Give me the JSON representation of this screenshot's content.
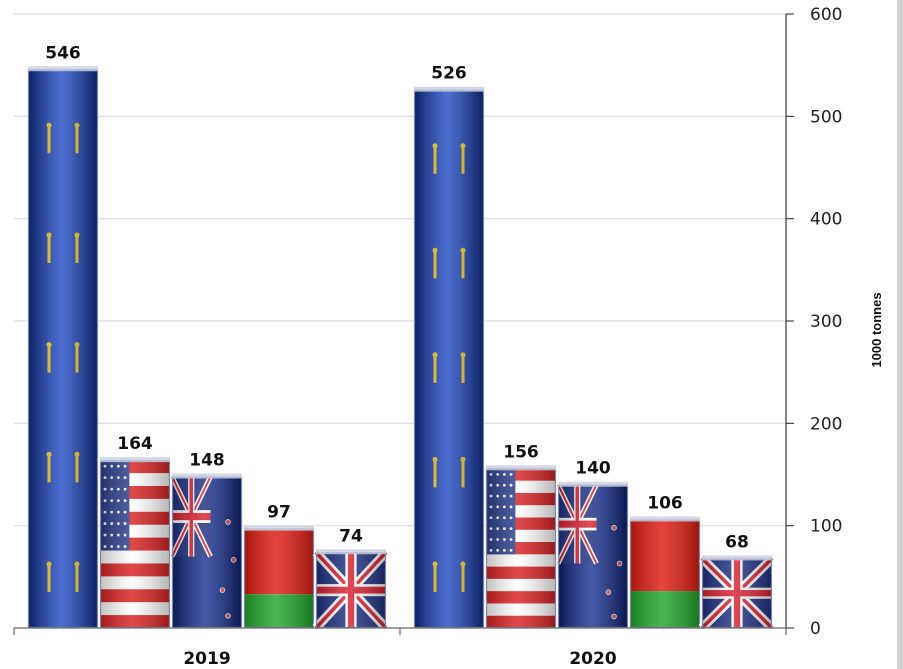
{
  "chart_data": {
    "type": "bar",
    "categories": [
      "2019",
      "2020"
    ],
    "series": [
      {
        "flag": "eu",
        "values": [
          546,
          526
        ]
      },
      {
        "flag": "us",
        "values": [
          164,
          156
        ]
      },
      {
        "flag": "nz",
        "values": [
          148,
          140
        ]
      },
      {
        "flag": "by",
        "values": [
          97,
          106
        ]
      },
      {
        "flag": "uk",
        "values": [
          74,
          68
        ]
      }
    ],
    "title": "",
    "xlabel": "",
    "ylabel": "1000 tonnes",
    "ylim": [
      0,
      600
    ],
    "yticks": [
      0,
      100,
      200,
      300,
      400,
      500,
      600
    ],
    "yaxis_side": "right",
    "grid": true,
    "legend": "none"
  },
  "colors": {
    "eu_blue": "#1a3aa8",
    "eu_star": "#e8c020",
    "us_red": "#d82020",
    "us_blue": "#2a3e8c",
    "uk_red": "#d82030",
    "uk_blue": "#1e2f80",
    "by_red": "#dd1a10",
    "by_green": "#1fa52a",
    "grid": "#dcdcdc"
  }
}
